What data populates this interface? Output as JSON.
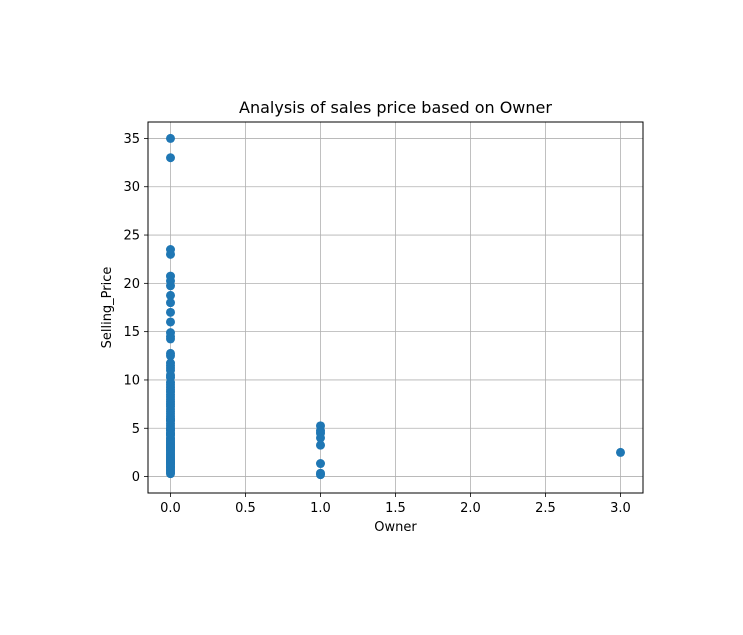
{
  "chart_data": {
    "type": "scatter",
    "title": "Analysis of sales price based on Owner",
    "xlabel": "Owner",
    "ylabel": "Selling_Price",
    "xlim": [
      -0.15,
      3.15
    ],
    "ylim": [
      -1.7,
      36.7
    ],
    "xticks": [
      0.0,
      0.5,
      1.0,
      1.5,
      2.0,
      2.5,
      3.0
    ],
    "xtick_labels": [
      "0.0",
      "0.5",
      "1.0",
      "1.5",
      "2.0",
      "2.5",
      "3.0"
    ],
    "yticks": [
      0,
      5,
      10,
      15,
      20,
      25,
      30,
      35
    ],
    "ytick_labels": [
      "0",
      "5",
      "10",
      "15",
      "20",
      "25",
      "30",
      "35"
    ],
    "grid": true,
    "color": "#1f77b4",
    "series": [
      {
        "x": [
          0,
          0,
          0,
          0,
          0,
          0,
          0,
          0,
          0,
          0,
          0,
          0,
          0,
          0,
          0,
          0,
          0,
          0,
          0,
          0,
          0,
          0,
          0,
          0,
          0,
          0,
          0,
          0,
          0,
          0,
          0,
          0,
          0,
          0,
          0,
          0,
          0,
          0,
          0,
          0,
          0,
          0,
          0,
          0,
          0,
          0,
          0,
          0,
          0,
          0,
          0,
          0,
          0,
          0,
          0,
          0,
          0,
          0,
          0,
          0,
          0,
          0,
          0,
          0,
          0,
          0,
          0,
          0,
          0,
          0,
          0,
          0,
          0,
          0,
          0,
          0,
          0,
          0,
          1,
          1,
          1,
          1,
          1,
          1,
          1,
          1,
          3
        ],
        "y": [
          35.0,
          33.0,
          23.5,
          23.0,
          20.75,
          20.25,
          19.75,
          18.75,
          18.0,
          17.0,
          16.0,
          14.9,
          14.5,
          14.25,
          12.75,
          12.5,
          11.75,
          11.5,
          11.25,
          11.0,
          10.5,
          10.25,
          9.75,
          9.5,
          9.25,
          9.0,
          8.75,
          8.5,
          8.25,
          8.0,
          7.75,
          7.5,
          7.25,
          7.0,
          6.75,
          6.5,
          6.25,
          6.0,
          5.85,
          5.75,
          5.5,
          5.25,
          5.0,
          4.9,
          4.75,
          4.5,
          4.4,
          4.25,
          4.0,
          3.9,
          3.75,
          3.6,
          3.5,
          3.35,
          3.25,
          3.1,
          3.0,
          2.9,
          2.75,
          2.65,
          2.5,
          2.35,
          2.25,
          2.1,
          2.0,
          1.85,
          1.75,
          1.6,
          1.5,
          1.35,
          1.25,
          1.1,
          1.0,
          0.9,
          0.75,
          0.6,
          0.45,
          0.3,
          5.25,
          4.75,
          4.5,
          4.0,
          3.25,
          1.35,
          0.35,
          0.2,
          2.5
        ]
      }
    ]
  }
}
